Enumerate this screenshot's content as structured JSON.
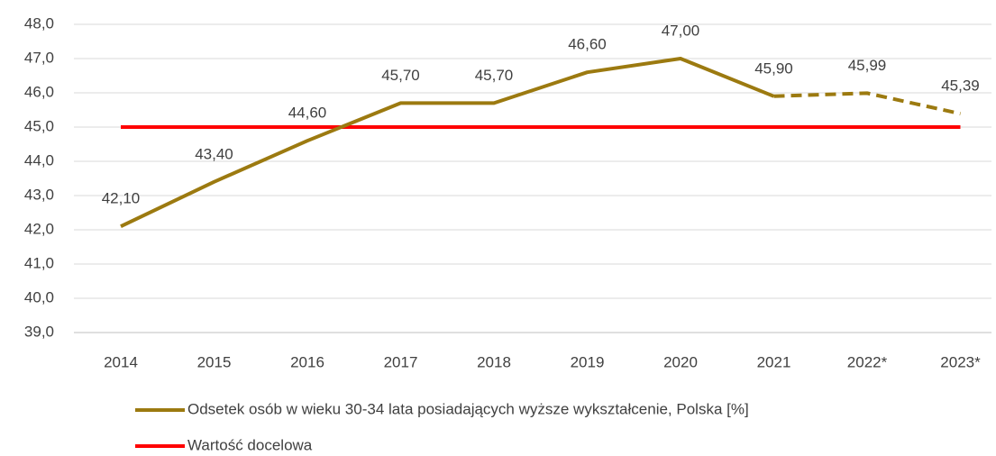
{
  "chart_data": {
    "type": "line",
    "categories": [
      "2014",
      "2015",
      "2016",
      "2017",
      "2018",
      "2019",
      "2020",
      "2021",
      "2022*",
      "2023*"
    ],
    "series": [
      {
        "name": "Odsetek osób w wieku 30-34 lata posiadających wyższe wykształcenie, Polska [%]",
        "color": "#9c7a10",
        "values": [
          42.1,
          43.4,
          44.6,
          45.7,
          45.7,
          46.6,
          47.0,
          45.9,
          45.99,
          45.39
        ],
        "value_labels": [
          "42,10",
          "43,40",
          "44,60",
          "45,70",
          "45,70",
          "46,60",
          "47,00",
          "45,90",
          "45,99",
          "45,39"
        ],
        "dashed": [
          false,
          false,
          false,
          false,
          false,
          false,
          false,
          false,
          true,
          true
        ]
      },
      {
        "name": "Wartość docelowa",
        "color": "#ff0000",
        "values": [
          45,
          45,
          45,
          45,
          45,
          45,
          45,
          45,
          45,
          45
        ]
      }
    ],
    "ylim": [
      39,
      48
    ],
    "yticks": [
      {
        "value": 39,
        "label": "39,0"
      },
      {
        "value": 40,
        "label": "40,0"
      },
      {
        "value": 41,
        "label": "41,0"
      },
      {
        "value": 42,
        "label": "42,0"
      },
      {
        "value": 43,
        "label": "43,0"
      },
      {
        "value": 44,
        "label": "44,0"
      },
      {
        "value": 45,
        "label": "45,0"
      },
      {
        "value": 46,
        "label": "46,0"
      },
      {
        "value": 47,
        "label": "47,0"
      },
      {
        "value": 48,
        "label": "48,0"
      }
    ],
    "grid": true,
    "legend": "bottom"
  }
}
